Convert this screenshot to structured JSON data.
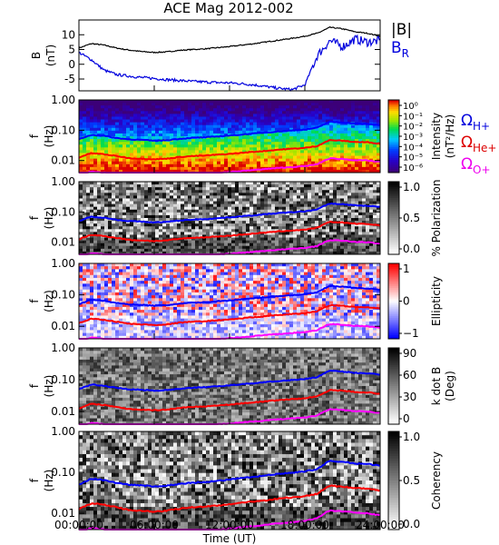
{
  "title": "ACE Mag 2012-002",
  "time_axis": {
    "label": "Time (UT)",
    "ticks": [
      "00:00:00",
      "06:00:00",
      "12:00:00",
      "18:00:00",
      "24:00:00"
    ],
    "range_hours": [
      0,
      24
    ]
  },
  "chart_data": [
    {
      "type": "line",
      "panel": "magnetic-field",
      "ylabel_line1": "B",
      "ylabel_line2": "(nT)",
      "ylim": [
        -9,
        15
      ],
      "y_ticks": [
        -5,
        0,
        5,
        10
      ],
      "legend": [
        {
          "text": "|B|",
          "color": "#000000"
        },
        {
          "text": "B",
          "sub": "R",
          "color": "#0000dd"
        }
      ],
      "x_hours": [
        0,
        1,
        2,
        3,
        4,
        5,
        6,
        7,
        8,
        9,
        10,
        11,
        12,
        13,
        14,
        15,
        16,
        17,
        18,
        19,
        20,
        21,
        22,
        23,
        24
      ],
      "series": [
        {
          "name": "|B|",
          "color": "#000000",
          "values": [
            5.5,
            7.0,
            6.5,
            5.5,
            4.8,
            4.3,
            4.0,
            4.2,
            4.7,
            5.0,
            5.2,
            5.6,
            6.0,
            6.5,
            7.0,
            7.6,
            8.2,
            8.8,
            9.5,
            10.5,
            12.5,
            12.0,
            11.0,
            10.5,
            9.5
          ]
        },
        {
          "name": "B_R",
          "color": "#0000dd",
          "values": [
            4.0,
            1.5,
            -2.0,
            -3.5,
            -4.0,
            -4.5,
            -4.8,
            -5.2,
            -5.5,
            -5.8,
            -6.0,
            -6.2,
            -6.3,
            -6.6,
            -7.0,
            -7.6,
            -8.2,
            -8.6,
            -7.0,
            3.0,
            8.0,
            6.0,
            8.5,
            7.5,
            8.0
          ]
        }
      ]
    },
    {
      "type": "heatmap",
      "panel": "intensity",
      "ylabel_line1": "f",
      "ylabel_line2": "(Hz)",
      "y_log": true,
      "ylim": [
        0.004,
        1.0
      ],
      "y_ticks": [
        "1.00",
        "0.10",
        "0.01"
      ],
      "colorbar": {
        "title": "Intensity",
        "unit": "(nT²/Hz)",
        "ticks": [
          "10⁰",
          "10⁻¹",
          "10⁻²",
          "10⁻³",
          "10⁻⁴",
          "10⁻⁵",
          "10⁻⁶"
        ],
        "scheme": "rainbow"
      },
      "gyrofrequency_labels": [
        {
          "text": "Ω",
          "sub": "H+",
          "color": "#0000dd"
        },
        {
          "text": "Ω",
          "sub": "He+",
          "color": "#dd0000"
        },
        {
          "text": "Ω",
          "sub": "O+",
          "color": "#ee00ee"
        }
      ]
    },
    {
      "type": "heatmap",
      "panel": "polarization",
      "ylabel_line1": "f",
      "ylabel_line2": "(Hz)",
      "y_log": true,
      "ylim": [
        0.004,
        1.0
      ],
      "y_ticks": [
        "1.00",
        "0.10",
        "0.01"
      ],
      "colorbar": {
        "title": "% Polarization",
        "ticks": [
          "1.0",
          "0.5",
          "0.0"
        ],
        "scheme": "gray"
      }
    },
    {
      "type": "heatmap",
      "panel": "ellipticity",
      "ylabel_line1": "f",
      "ylabel_line2": "(Hz)",
      "y_log": true,
      "ylim": [
        0.004,
        1.0
      ],
      "y_ticks": [
        "1.00",
        "0.10",
        "0.01"
      ],
      "colorbar": {
        "title": "Ellipticity",
        "ticks": [
          "1",
          "0",
          "−1"
        ],
        "scheme": "bwr"
      }
    },
    {
      "type": "heatmap",
      "panel": "k-dot-b",
      "ylabel_line1": "f",
      "ylabel_line2": "(Hz)",
      "y_log": true,
      "ylim": [
        0.004,
        1.0
      ],
      "y_ticks": [
        "1.00",
        "0.10",
        "0.01"
      ],
      "colorbar": {
        "title": "k dot B",
        "unit": "(Deg)",
        "ticks": [
          "90",
          "60",
          "30",
          "0"
        ],
        "scheme": "gray"
      }
    },
    {
      "type": "heatmap",
      "panel": "coherency",
      "ylabel_line1": "f",
      "ylabel_line2": "(Hz)",
      "y_log": true,
      "ylim": [
        0.004,
        1.0
      ],
      "y_ticks": [
        "1.00",
        "0.10",
        "0.01"
      ],
      "colorbar": {
        "title": "Coherency",
        "ticks": [
          "1.0",
          "0.5",
          "0.0"
        ],
        "scheme": "gray"
      }
    }
  ],
  "gyrofrequencies": {
    "x_hours": [
      0,
      1,
      2,
      3,
      4,
      5,
      6,
      7,
      8,
      9,
      10,
      11,
      12,
      13,
      14,
      15,
      16,
      17,
      18,
      19,
      20,
      21,
      22,
      23,
      24
    ],
    "series": [
      {
        "name": "ΩH+",
        "color": "#0000ff",
        "values": [
          0.05,
          0.07,
          0.065,
          0.055,
          0.05,
          0.048,
          0.045,
          0.047,
          0.052,
          0.056,
          0.058,
          0.062,
          0.067,
          0.072,
          0.078,
          0.085,
          0.092,
          0.098,
          0.105,
          0.12,
          0.19,
          0.18,
          0.165,
          0.16,
          0.145
        ]
      },
      {
        "name": "ΩHe+",
        "color": "#ff0000",
        "values": [
          0.0125,
          0.0175,
          0.016,
          0.014,
          0.012,
          0.0115,
          0.011,
          0.0115,
          0.013,
          0.014,
          0.0145,
          0.0155,
          0.0165,
          0.018,
          0.0195,
          0.021,
          0.023,
          0.0245,
          0.026,
          0.03,
          0.047,
          0.045,
          0.041,
          0.04,
          0.036
        ]
      },
      {
        "name": "ΩO+",
        "color": "#ff00ff",
        "values": [
          0.0031,
          0.0044,
          0.004,
          0.0035,
          0.003,
          0.0029,
          0.0028,
          0.0029,
          0.0032,
          0.0035,
          0.0036,
          0.0039,
          0.0042,
          0.0045,
          0.0049,
          0.0053,
          0.0057,
          0.0061,
          0.0065,
          0.0075,
          0.0118,
          0.0112,
          0.0103,
          0.01,
          0.009
        ]
      }
    ]
  }
}
